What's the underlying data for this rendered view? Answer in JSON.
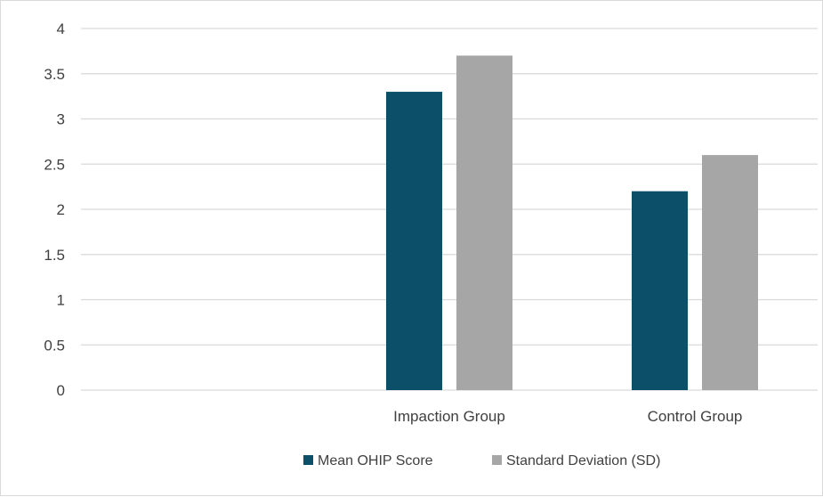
{
  "chart_data": {
    "type": "bar",
    "title": "",
    "xlabel": "",
    "ylabel": "",
    "categories": [
      "",
      "Impaction Group",
      "Control Group"
    ],
    "series": [
      {
        "name": "Mean OHIP Score",
        "values": [
          null,
          3.3,
          2.2
        ],
        "color": "#0b4f68"
      },
      {
        "name": "Standard Deviation (SD)",
        "values": [
          null,
          3.7,
          2.6
        ],
        "color": "#a6a6a6"
      }
    ],
    "ylim": [
      0,
      4
    ],
    "yticks": [
      0,
      0.5,
      1,
      1.5,
      2,
      2.5,
      3,
      3.5,
      4
    ],
    "grid": true,
    "legend_position": "bottom"
  }
}
